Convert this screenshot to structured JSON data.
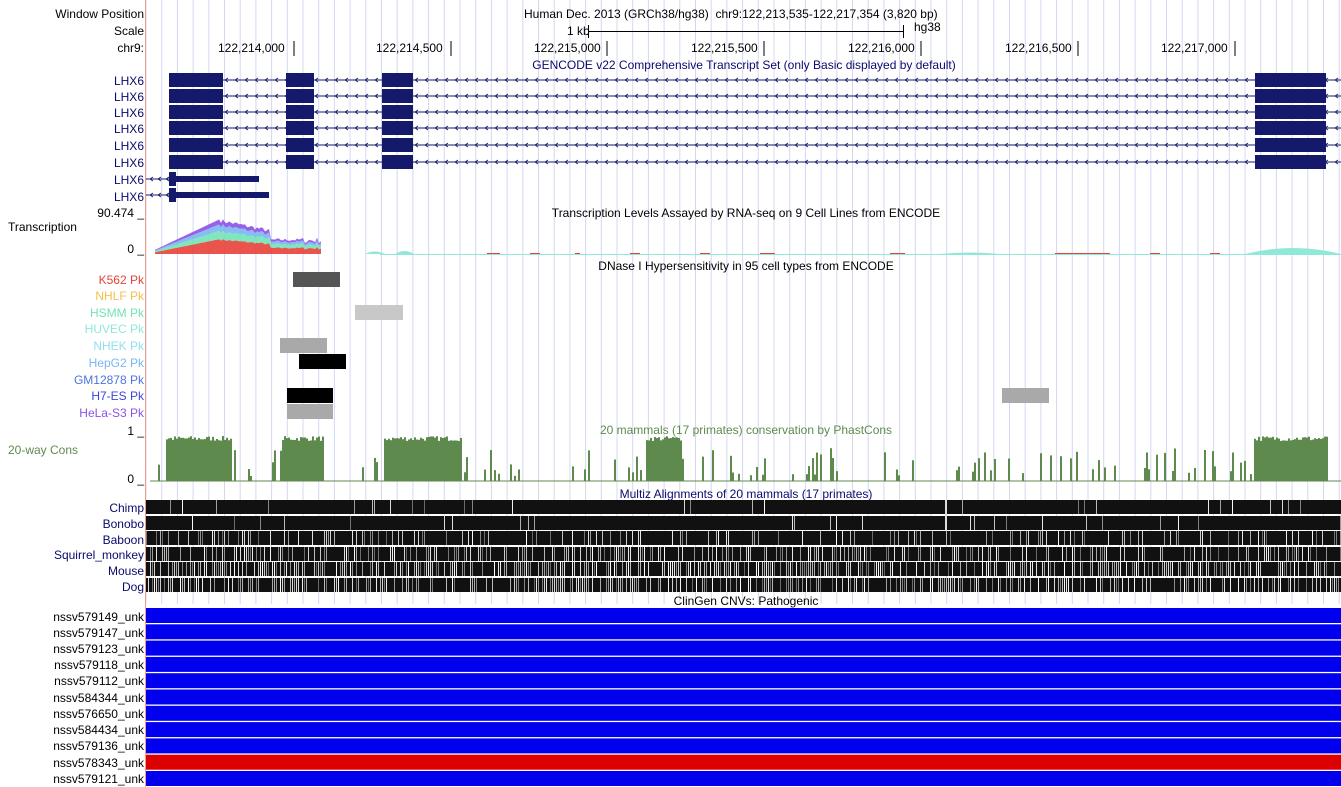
{
  "header": {
    "window_position_label": "Window Position",
    "scale_label": "Scale",
    "chrom_label": "chr9:",
    "assembly_title": "Human Dec. 2013 (GRCh38/hg38)",
    "position": "chr9:122,213,535-122,217,354 (3,820 bp)",
    "scale_bar": "1 kb",
    "db": "hg38",
    "ticks": [
      "122,214,000",
      "122,214,500",
      "122,215,000",
      "122,215,500",
      "122,216,000",
      "122,216,500",
      "122,217,000"
    ]
  },
  "gencode": {
    "title": "GENCODE v22 Comprehensive Transcript Set (only Basic displayed by default)",
    "transcripts": [
      "LHX6",
      "LHX6",
      "LHX6",
      "LHX6",
      "LHX6",
      "LHX6",
      "LHX6",
      "LHX6"
    ]
  },
  "transcription": {
    "label": "Transcription",
    "title": "Transcription Levels Assayed by RNA-seq on 9 Cell Lines from ENCODE",
    "max": "90.474 _",
    "min": "0 _"
  },
  "dnase": {
    "title": "DNase I Hypersensitivity in 95 cell types from ENCODE",
    "rows": [
      {
        "label": "K562 Pk",
        "color": "#e8413a"
      },
      {
        "label": "NHLF Pk",
        "color": "#f6c04a"
      },
      {
        "label": "HSMM Pk",
        "color": "#72e3b4"
      },
      {
        "label": "HUVEC Pk",
        "color": "#8fe9d9"
      },
      {
        "label": "NHEK Pk",
        "color": "#8fdff0"
      },
      {
        "label": "HepG2 Pk",
        "color": "#79b6f2"
      },
      {
        "label": "GM12878 Pk",
        "color": "#4d74e0"
      },
      {
        "label": "H7-ES Pk",
        "color": "#3d44d8"
      },
      {
        "label": "HeLa-S3 Pk",
        "color": "#8d51e6"
      }
    ]
  },
  "conservation": {
    "label": "20-way Cons",
    "title": "20 mammals (17 primates) conservation by PhastCons",
    "max": "1 _",
    "min": "0 _",
    "color": "#5f8a4e"
  },
  "multiz": {
    "title": "Multiz Alignments of 20 mammals (17 primates)",
    "species": [
      "Chimp",
      "Bonobo",
      "Baboon",
      "Squirrel_monkey",
      "Mouse",
      "Dog"
    ]
  },
  "clingen": {
    "title": "ClinGen CNVs: Pathogenic",
    "rows": [
      {
        "id": "nssv579149_unk",
        "color": "#0000ee"
      },
      {
        "id": "nssv579147_unk",
        "color": "#0000ee"
      },
      {
        "id": "nssv579123_unk",
        "color": "#0000ee"
      },
      {
        "id": "nssv579118_unk",
        "color": "#0000ee"
      },
      {
        "id": "nssv579112_unk",
        "color": "#0000ee"
      },
      {
        "id": "nssv584344_unk",
        "color": "#0000ee"
      },
      {
        "id": "nssv576650_unk",
        "color": "#0000ee"
      },
      {
        "id": "nssv584434_unk",
        "color": "#0000ee"
      },
      {
        "id": "nssv579136_unk",
        "color": "#0000ee"
      },
      {
        "id": "nssv578343_unk",
        "color": "#dd0000"
      },
      {
        "id": "nssv579121_unk",
        "color": "#0000ee"
      }
    ]
  },
  "colors": {
    "gene_navy": "#14196b",
    "track_title_blue": "#0a0a6e",
    "grid": "#d4d8ee"
  }
}
